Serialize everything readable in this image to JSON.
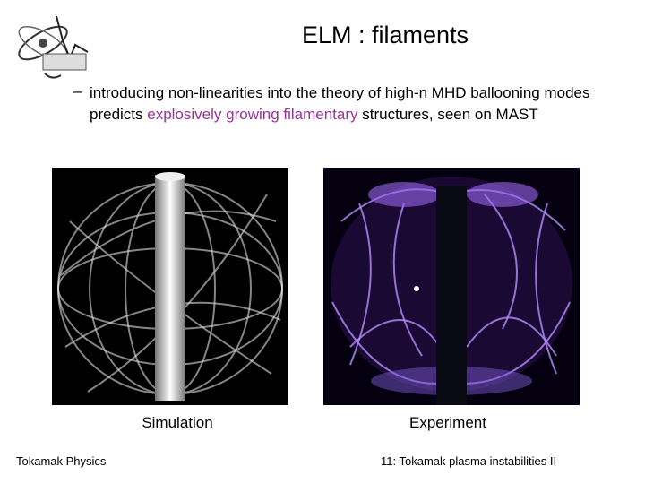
{
  "header": {
    "title": "ELM : filaments"
  },
  "bullet": {
    "marker": "–",
    "parts": [
      "introducing non-linearities into the theory of high-n MHD ballooning modes predicts ",
      "explosively growing filamentary",
      " structures, seen on MAST"
    ]
  },
  "figures": [
    {
      "caption": "Simulation"
    },
    {
      "caption": "Experiment"
    }
  ],
  "footer": {
    "left": "Tokamak Physics",
    "right": "11: Tokamak plasma instabilities II"
  }
}
